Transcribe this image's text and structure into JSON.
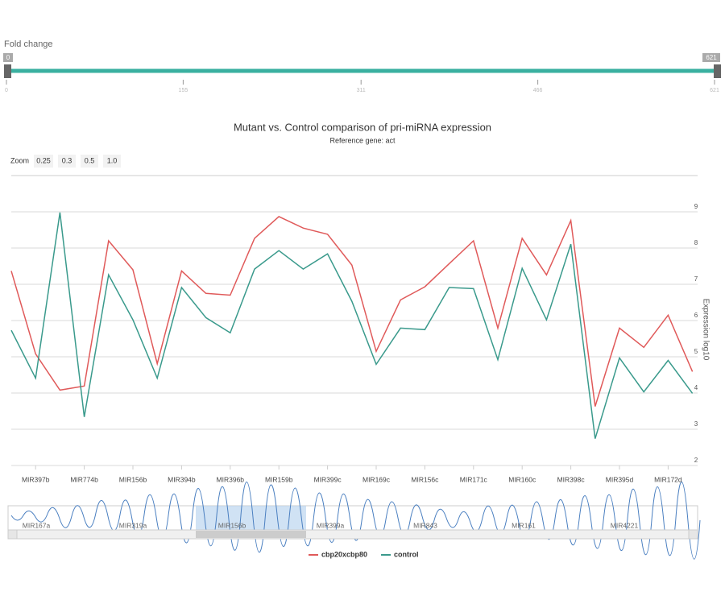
{
  "slider": {
    "label": "Fold change",
    "min": 0,
    "max": 621,
    "ticks": [
      0,
      155,
      311,
      466,
      621
    ]
  },
  "zoom": {
    "label": "Zoom",
    "options": [
      "0.25",
      "0.3",
      "0.5",
      "1.0"
    ]
  },
  "chart_data": {
    "type": "line",
    "title": "Mutant vs. Control comparison of pri-miRNA expression",
    "subtitle": "Reference gene: act",
    "y_label": "Expression log10",
    "categories": [
      null,
      "MIR397b",
      null,
      "MIR774b",
      null,
      "MIR156b",
      null,
      "MIR394b",
      null,
      "MIR396b",
      null,
      "MIR159b",
      null,
      "MIR399c",
      null,
      "MIR169c",
      null,
      "MIR156c",
      null,
      "MIR171c",
      null,
      "MIR160c",
      null,
      "MIR398c",
      null,
      "MIR395d",
      null,
      "MIR172d",
      null
    ],
    "series": [
      {
        "name": "cbp20xcbp80",
        "color": "#e05a5a",
        "values": [
          7.37,
          5.08,
          4.08,
          4.19,
          8.2,
          7.4,
          4.81,
          7.37,
          6.75,
          6.7,
          8.27,
          8.87,
          8.55,
          8.38,
          7.53,
          5.15,
          6.57,
          6.93,
          7.57,
          8.2,
          5.79,
          8.27,
          7.26,
          8.76,
          3.63,
          5.79,
          5.26,
          6.15,
          4.59
        ]
      },
      {
        "name": "control",
        "color": "#3a9a8c",
        "values": [
          5.73,
          4.41,
          8.98,
          3.34,
          7.26,
          6.02,
          4.41,
          6.91,
          6.08,
          5.66,
          7.42,
          7.93,
          7.42,
          7.84,
          6.53,
          4.79,
          5.79,
          5.75,
          6.91,
          6.88,
          4.92,
          7.44,
          6.02,
          8.11,
          2.74,
          4.97,
          4.03,
          4.9,
          3.99
        ]
      }
    ],
    "ylim": [
      2,
      10
    ],
    "yticks": [
      2,
      3,
      4,
      5,
      6,
      7,
      8,
      9
    ],
    "grid": true
  },
  "navigator": {
    "labels": [
      "MIR167a",
      "MIR319a",
      "MIR156b",
      "MIR399a",
      "MIR843",
      "MIR161",
      "MIR4221"
    ]
  }
}
